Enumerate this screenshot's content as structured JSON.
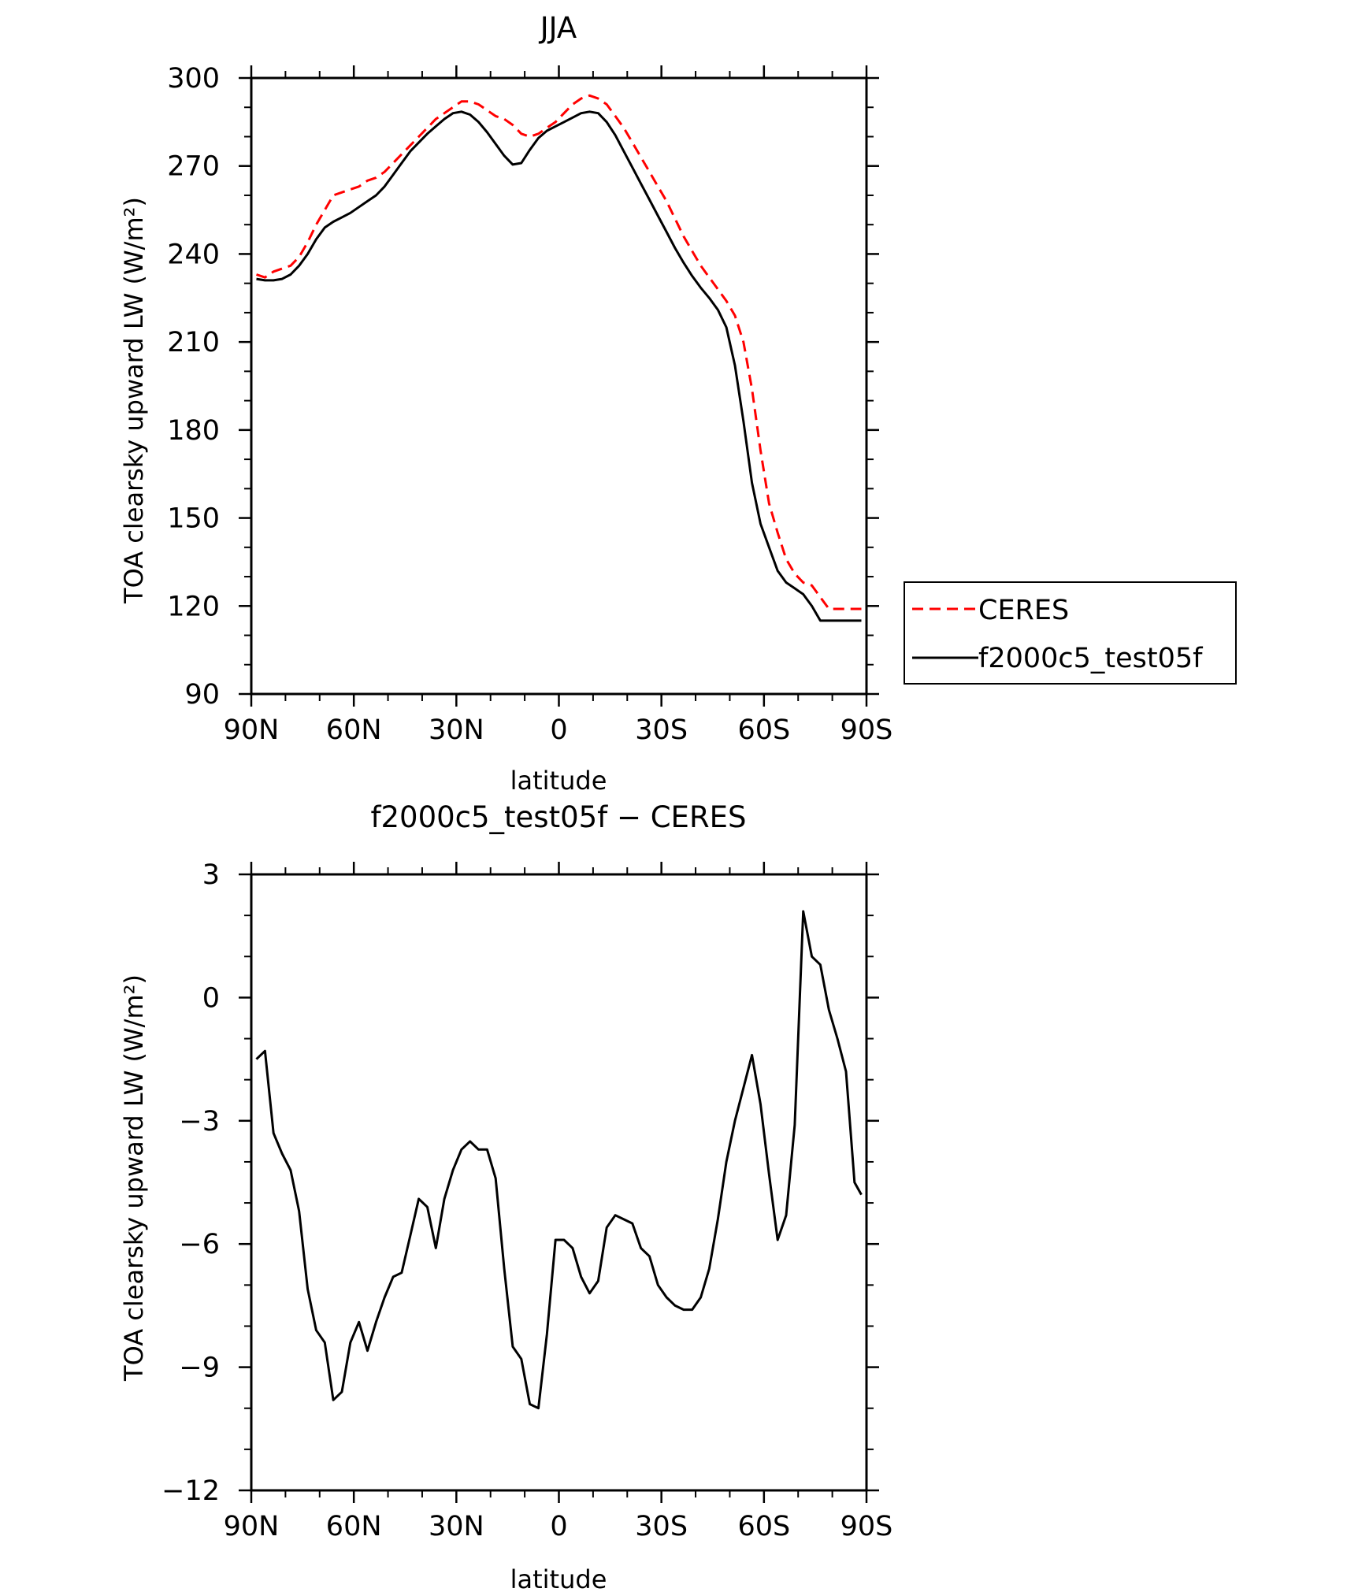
{
  "chart_data": [
    {
      "type": "line",
      "title": "JJA",
      "xlabel": "latitude",
      "ylabel": "TOA clearsky upward LW (W/m²)",
      "xlim": [
        90,
        -90
      ],
      "ylim": [
        90,
        300
      ],
      "xticks": [
        90,
        60,
        30,
        0,
        -30,
        -60,
        -90
      ],
      "xtick_labels": [
        "90N",
        "60N",
        "30N",
        "0",
        "30S",
        "60S",
        "90S"
      ],
      "yticks": [
        90,
        120,
        150,
        180,
        210,
        240,
        270,
        300
      ],
      "ytick_labels": [
        "90",
        "120",
        "150",
        "180",
        "210",
        "240",
        "270",
        "300"
      ],
      "legend_position": "right",
      "series": [
        {
          "name": "CERES",
          "color": "#ff0000",
          "dash": "dashed",
          "x": [
            88.5,
            86,
            83.5,
            81,
            78.5,
            76,
            73.5,
            71,
            68.5,
            66,
            63.5,
            61,
            58.5,
            56,
            53.5,
            51,
            48.5,
            46,
            43.5,
            41,
            38.5,
            36,
            33.5,
            31,
            28.5,
            26,
            23.5,
            21,
            18.5,
            16,
            13.5,
            11,
            8.5,
            6,
            3.5,
            1,
            -1.5,
            -4,
            -6.5,
            -9,
            -11.5,
            -14,
            -16.5,
            -19,
            -21.5,
            -24,
            -26.5,
            -29,
            -31.5,
            -34,
            -36.5,
            -39,
            -41.5,
            -44,
            -46.5,
            -49,
            -51.5,
            -54,
            -56.5,
            -59,
            -61.5,
            -64,
            -66.5,
            -69,
            -71.5,
            -74,
            -76.5,
            -79,
            -81.5,
            -84,
            -86.5,
            -88.5
          ],
          "y": [
            233,
            232,
            234,
            235,
            236,
            239,
            244,
            250,
            255,
            260,
            261,
            262,
            263,
            265,
            266,
            268,
            271,
            274,
            277,
            280,
            283,
            286,
            288,
            290,
            292,
            292,
            291,
            289,
            287,
            286,
            284,
            281,
            280,
            281,
            283,
            285,
            288,
            291,
            293,
            294,
            293,
            291,
            287,
            283,
            278,
            273,
            268,
            263,
            258,
            252,
            246,
            241,
            236,
            232,
            228,
            224,
            219,
            210,
            194,
            173,
            155,
            145,
            136,
            131,
            128,
            127,
            123,
            119,
            119,
            119,
            119,
            119
          ],
          "note_y_series_end": "ends near 118 at 88.5S"
        },
        {
          "name": "f2000c5_test05f",
          "color": "#000000",
          "dash": "solid",
          "x": [
            88.5,
            86,
            83.5,
            81,
            78.5,
            76,
            73.5,
            71,
            68.5,
            66,
            63.5,
            61,
            58.5,
            56,
            53.5,
            51,
            48.5,
            46,
            43.5,
            41,
            38.5,
            36,
            33.5,
            31,
            28.5,
            26,
            23.5,
            21,
            18.5,
            16,
            13.5,
            11,
            8.5,
            6,
            3.5,
            1,
            -1.5,
            -4,
            -6.5,
            -9,
            -11.5,
            -14,
            -16.5,
            -19,
            -21.5,
            -24,
            -26.5,
            -29,
            -31.5,
            -34,
            -36.5,
            -39,
            -41.5,
            -44,
            -46.5,
            -49,
            -51.5,
            -54,
            -56.5,
            -59,
            -61.5,
            -64,
            -66.5,
            -69,
            -71.5,
            -74,
            -76.5,
            -79,
            -81.5,
            -84,
            -86.5,
            -88.5
          ],
          "y": [
            231.5,
            231,
            231,
            231.5,
            233,
            236,
            240,
            245,
            249,
            251,
            252.5,
            254,
            256,
            258,
            260,
            263,
            267,
            271,
            275,
            278,
            281,
            283.5,
            286,
            288,
            288.5,
            287.5,
            285,
            281.5,
            277.5,
            273.5,
            270.5,
            271,
            275.5,
            279.5,
            282,
            283.5,
            285,
            286.5,
            288,
            288.5,
            288,
            285,
            280.5,
            275,
            269.5,
            264,
            258.5,
            253,
            247.5,
            242,
            237,
            232.5,
            228.5,
            225,
            221,
            215,
            202,
            183,
            162,
            148,
            140,
            132,
            128,
            126,
            124,
            120,
            115,
            115,
            115,
            115,
            115,
            115
          ]
        }
      ]
    },
    {
      "type": "line",
      "title": "f2000c5_test05f − CERES",
      "xlabel": "latitude",
      "ylabel": "TOA clearsky upward LW (W/m²)",
      "xlim": [
        90,
        -90
      ],
      "ylim": [
        -12,
        3
      ],
      "xticks": [
        90,
        60,
        30,
        0,
        -30,
        -60,
        -90
      ],
      "xtick_labels": [
        "90N",
        "60N",
        "30N",
        "0",
        "30S",
        "60S",
        "90S"
      ],
      "yticks": [
        -12,
        -9,
        -6,
        -3,
        0,
        3
      ],
      "ytick_labels": [
        "−12",
        "−9",
        "−6",
        "−3",
        "0",
        "3"
      ],
      "series": [
        {
          "color": "#000000",
          "dash": "solid",
          "x": [
            88.5,
            86,
            83.5,
            81,
            78.5,
            76,
            73.5,
            71,
            68.5,
            66,
            63.5,
            61,
            58.5,
            56,
            53.5,
            51,
            48.5,
            46,
            43.5,
            41,
            38.5,
            36,
            33.5,
            31,
            28.5,
            26,
            23.5,
            21,
            18.5,
            16,
            13.5,
            11,
            8.5,
            6,
            3.5,
            1,
            -1.5,
            -4,
            -6.5,
            -9,
            -11.5,
            -14,
            -16.5,
            -19,
            -21.5,
            -24,
            -26.5,
            -29,
            -31.5,
            -34,
            -36.5,
            -39,
            -41.5,
            -44,
            -46.5,
            -49,
            -51.5,
            -54,
            -56.5,
            -59,
            -61.5,
            -64,
            -66.5,
            -69,
            -71.5,
            -74,
            -76.5,
            -79,
            -81.5,
            -84,
            -86.5,
            -88.5
          ],
          "y": [
            -1.5,
            -1.3,
            -3.3,
            -3.8,
            -4.2,
            -5.2,
            -7.1,
            -8.1,
            -8.4,
            -9.8,
            -9.6,
            -8.4,
            -7.9,
            -8.6,
            -7.9,
            -7.3,
            -6.8,
            -6.7,
            -5.8,
            -4.9,
            -5.1,
            -6.1,
            -4.9,
            -4.2,
            -3.7,
            -3.5,
            -3.7,
            -3.7,
            -4.4,
            -6.6,
            -8.5,
            -8.8,
            -9.9,
            -10,
            -8.2,
            -5.9,
            -5.9,
            -6.1,
            -6.8,
            -7.2,
            -6.9,
            -5.6,
            -5.3,
            -5.4,
            -5.5,
            -6.1,
            -6.3,
            -7,
            -7.3,
            -7.5,
            -7.6,
            -7.6,
            -7.3,
            -6.6,
            -5.4,
            -4,
            -3,
            -2.2,
            -1.4,
            -2.6,
            -4.3,
            -5.9,
            -5.3,
            -3.1,
            2.1,
            1,
            0.8,
            -0.3,
            -1,
            -1.8,
            -4.5,
            -4.8
          ]
        }
      ]
    }
  ]
}
